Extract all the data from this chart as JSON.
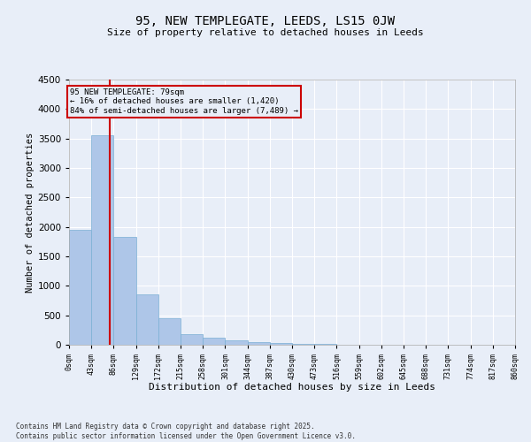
{
  "title1": "95, NEW TEMPLEGATE, LEEDS, LS15 0JW",
  "title2": "Size of property relative to detached houses in Leeds",
  "xlabel": "Distribution of detached houses by size in Leeds",
  "ylabel": "Number of detached properties",
  "annotation_line1": "95 NEW TEMPLEGATE: 79sqm",
  "annotation_line2": "← 16% of detached houses are smaller (1,420)",
  "annotation_line3": "84% of semi-detached houses are larger (7,489) →",
  "property_size": 79,
  "bin_edges": [
    0,
    43,
    86,
    129,
    172,
    215,
    258,
    301,
    344,
    387,
    430,
    473,
    516,
    559,
    602,
    645,
    688,
    731,
    774,
    817,
    860
  ],
  "bar_heights": [
    1950,
    3550,
    1825,
    850,
    450,
    175,
    125,
    75,
    50,
    30,
    15,
    10,
    5,
    3,
    2,
    1,
    1,
    1,
    0,
    0
  ],
  "bar_color": "#aec6e8",
  "bar_edge_color": "#7aafd4",
  "red_line_color": "#cc0000",
  "annotation_box_color": "#cc0000",
  "background_color": "#e8eef8",
  "grid_color": "#ffffff",
  "ylim": [
    0,
    4500
  ],
  "yticks": [
    0,
    500,
    1000,
    1500,
    2000,
    2500,
    3000,
    3500,
    4000,
    4500
  ],
  "tick_labels": [
    "0sqm",
    "43sqm",
    "86sqm",
    "129sqm",
    "172sqm",
    "215sqm",
    "258sqm",
    "301sqm",
    "344sqm",
    "387sqm",
    "430sqm",
    "473sqm",
    "516sqm",
    "559sqm",
    "602sqm",
    "645sqm",
    "688sqm",
    "731sqm",
    "774sqm",
    "817sqm",
    "860sqm"
  ],
  "footer1": "Contains HM Land Registry data © Crown copyright and database right 2025.",
  "footer2": "Contains public sector information licensed under the Open Government Licence v3.0."
}
